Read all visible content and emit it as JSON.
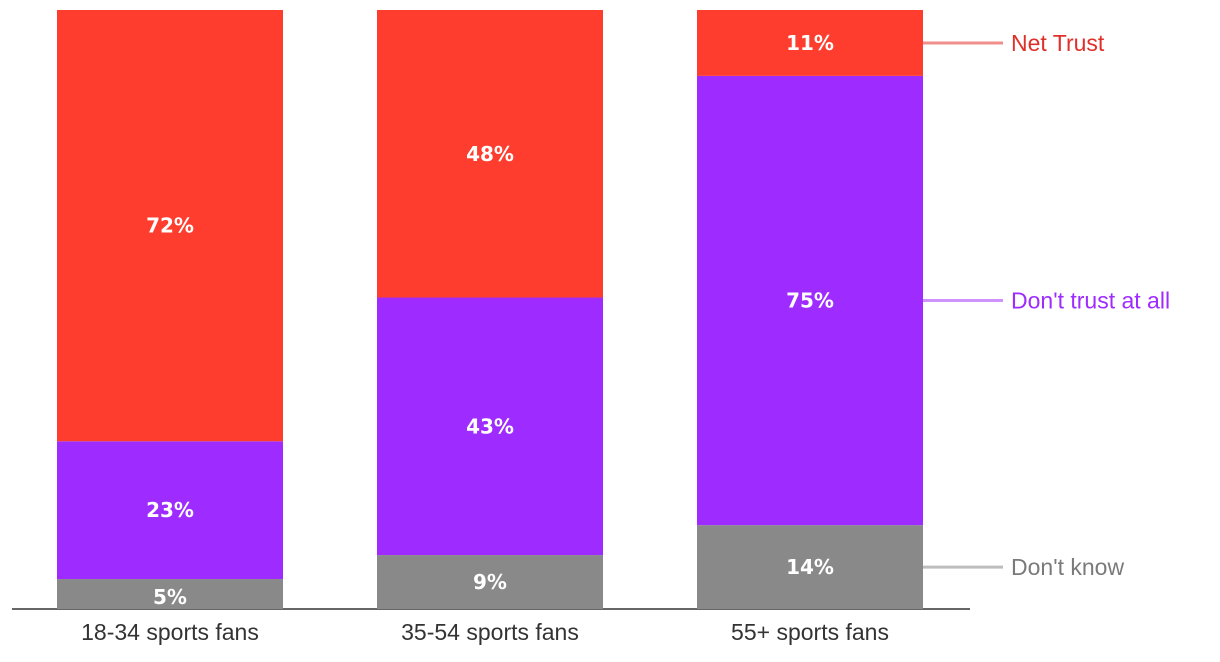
{
  "chart_data": {
    "type": "bar",
    "stacked": true,
    "orientation": "vertical",
    "categories": [
      "18-34 sports fans",
      "35-54 sports fans",
      "55+ sports fans"
    ],
    "series": [
      {
        "name": "Don't know",
        "color": "#898989",
        "values": [
          5,
          9,
          14
        ],
        "labels": [
          "5%",
          "9%",
          "14%"
        ]
      },
      {
        "name": "Don't trust at all",
        "color": "#9e2bff",
        "values": [
          23,
          43,
          75
        ],
        "labels": [
          "23%",
          "43%",
          "75%"
        ]
      },
      {
        "name": "Net Trust",
        "color": "#ff3d2e",
        "values": [
          72,
          48,
          11
        ],
        "labels": [
          "72%",
          "48%",
          "11%"
        ]
      }
    ],
    "legend": {
      "placement": "right",
      "entries": [
        {
          "name": "Net Trust",
          "text_color": "#e0302a",
          "line_color": "#ef8f8c"
        },
        {
          "name": "Don't trust at all",
          "text_color": "#9e2bff",
          "line_color": "#cf93ff"
        },
        {
          "name": "Don't know",
          "text_color": "#7a7a7a",
          "line_color": "#bdbdbd"
        }
      ]
    },
    "ylim": [
      0,
      100
    ],
    "grid": false,
    "title": "",
    "xlabel": "",
    "ylabel": ""
  }
}
